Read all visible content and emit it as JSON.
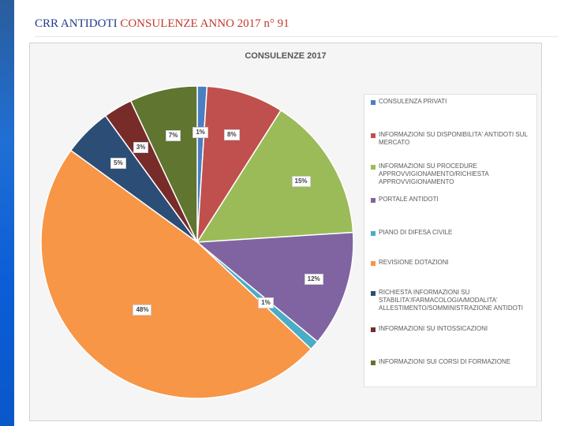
{
  "slide": {
    "title_part1": "CRR ANTIDOTI ",
    "title_part2": "CONSULENZE ANNO 2017 n° 91"
  },
  "colors": {
    "title_blue": "#1f3b8f",
    "title_red": "#c0392b",
    "side_bar": "#1f6fd4"
  },
  "chart_data": {
    "type": "pie",
    "title": "CONSULENZE 2017",
    "legend_position": "right",
    "slices": [
      {
        "name": "CONSULENZA PRIVATI",
        "value": 1,
        "label": "1%",
        "color": "#4a7fc1"
      },
      {
        "name": "INFORMAZIONI SU DISPONIBILITA' ANTIDOTI SUL MERCATO",
        "value": 8,
        "label": "8%",
        "color": "#c0504d"
      },
      {
        "name": "INFORMAZIONI SU PROCEDURE APPROVVIGIONAMENTO/RICHIESTA APPROVVIGIONAMENTO",
        "value": 15,
        "label": "15%",
        "color": "#9bbb59"
      },
      {
        "name": "PORTALE ANTIDOTI",
        "value": 12,
        "label": "12%",
        "color": "#8064a2"
      },
      {
        "name": "PIANO DI DIFESA CIVILE",
        "value": 1,
        "label": "1%",
        "color": "#4bacc6"
      },
      {
        "name": "REVISIONE DOTAZIONI",
        "value": 48,
        "label": "48%",
        "color": "#f79646"
      },
      {
        "name": "RICHIESTA INFORMAZIONI SU STABILITA'/FARMACOLOGIA/MODALITA' ALLESTIMENTO/SOMMINISTRAZIONE ANTIDOTI",
        "value": 5,
        "label": "5%",
        "color": "#2c4d75"
      },
      {
        "name": "INFORMAZIONI SU INTOSSICAZIONI",
        "value": 3,
        "label": "3%",
        "color": "#772c2a"
      },
      {
        "name": "INFORMAZIONI SUI CORSI DI FORMAZIONE",
        "value": 7,
        "label": "7%",
        "color": "#5f7530"
      }
    ]
  }
}
